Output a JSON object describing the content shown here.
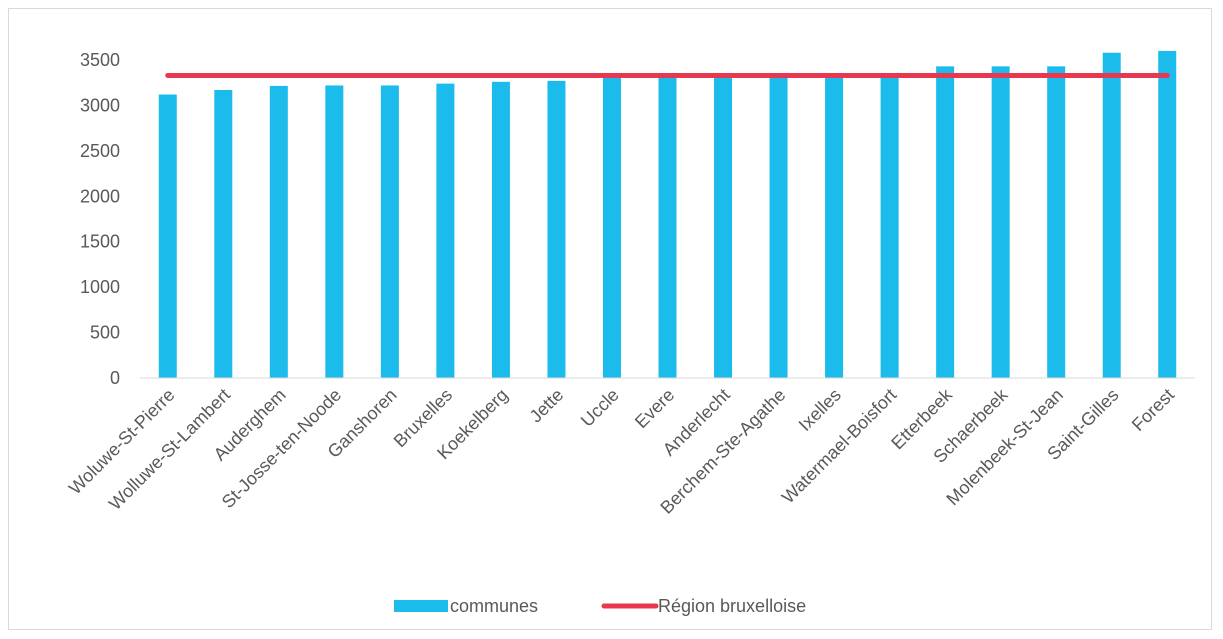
{
  "chart_data": {
    "type": "bar",
    "title": "",
    "xlabel": "",
    "ylabel": "",
    "ylim": [
      0,
      3500
    ],
    "yticks": [
      0,
      500,
      1000,
      1500,
      2000,
      2500,
      3000,
      3500
    ],
    "grid": false,
    "legend_position": "bottom",
    "categories": [
      "Woluwe-St-Pierre",
      "Wolluwe-St-Lambert",
      "Auderghem",
      "St-Josse-ten-Noode",
      "Ganshoren",
      "Bruxelles",
      "Koekelberg",
      "Jette",
      "Uccle",
      "Evere",
      "Anderlecht",
      "Berchem-Ste-Agathe",
      "Ixelles",
      "Watermael-Boisfort",
      "Etterbeek",
      "Schaerbeek",
      "Molenbeek-St-Jean",
      "Saint-Gilles",
      "Forest"
    ],
    "series": [
      {
        "name": "communes",
        "type": "bar",
        "color": "#1BBCEB",
        "values": [
          3120,
          3170,
          3215,
          3220,
          3220,
          3240,
          3260,
          3270,
          3320,
          3320,
          3320,
          3320,
          3320,
          3330,
          3430,
          3430,
          3430,
          3580,
          3600
        ]
      },
      {
        "name": "Région bruxelloise",
        "type": "line",
        "color": "#E8384F",
        "values": [
          3330,
          3330,
          3330,
          3330,
          3330,
          3330,
          3330,
          3330,
          3330,
          3330,
          3330,
          3330,
          3330,
          3330,
          3330,
          3330,
          3330,
          3330,
          3330
        ]
      }
    ]
  }
}
